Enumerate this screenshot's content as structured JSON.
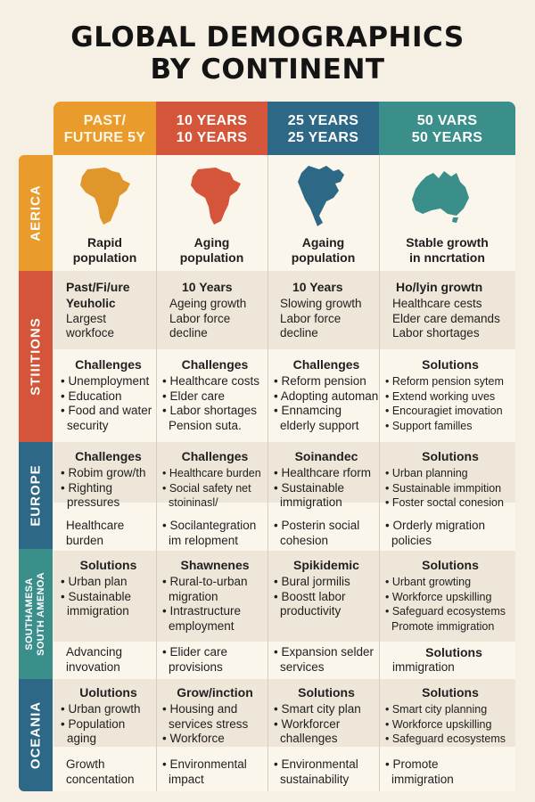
{
  "title": {
    "line1": "GLOBAL DEMOGRAPHICS",
    "line2": "BY CONTINENT"
  },
  "columns": [
    {
      "line1": "PAST/",
      "line2": "FUTURE 5Y"
    },
    {
      "line1": "10 YEARS",
      "line2": "10 YEARS"
    },
    {
      "line1": "25 YEARS",
      "line2": "25 YEARS"
    },
    {
      "line1": "50 VARS",
      "line2": "50 YEARS"
    }
  ],
  "rows": [
    "AERICA",
    "STIIITIONS",
    "EUROPE",
    "SOUTHAMESA SOUTH AMENOA",
    "OCEANIA"
  ],
  "rows_extra": {
    "sa_line1": "SOUTHAMESA",
    "sa_line2": "SOUTH AMENOA"
  },
  "maps": [
    {
      "name": "africa",
      "color": "#e0962a"
    },
    {
      "name": "africa",
      "color": "#d4553a"
    },
    {
      "name": "north-america",
      "color": "#2e6887"
    },
    {
      "name": "australia",
      "color": "#3a8f8b"
    }
  ],
  "captions": [
    {
      "line1": "Rapid",
      "line2": "population"
    },
    {
      "line1": "Aging",
      "line2": "population"
    },
    {
      "line1": "Againg",
      "line2": "population"
    },
    {
      "line1": "Stable growth",
      "line2": "in nncrtation"
    }
  ],
  "r2a": [
    {
      "head": "Past/Fi/ure",
      "sub": "Yeuholic",
      "lines": [
        "Largest",
        "workfoce"
      ]
    },
    {
      "head": "10 Years",
      "lines": [
        "Ageing growth",
        "Labor force",
        "decline"
      ]
    },
    {
      "head": "10 Years",
      "lines": [
        "Slowing growth",
        "Labor force",
        "decline"
      ]
    },
    {
      "head": "Ho/lyin growtn",
      "lines": [
        "Healthcare cests",
        "Elder care demands",
        "Labor shortages"
      ]
    }
  ],
  "r2b": [
    {
      "head": "Challenges",
      "lines": [
        "• Unemployment",
        "• Education",
        "• Food and water",
        "  security"
      ]
    },
    {
      "head": "Challenges",
      "lines": [
        "• Healthcare costs",
        "• Elder care",
        "• Labor shortages",
        "  Pension suta."
      ]
    },
    {
      "head": "Challenges",
      "lines": [
        "• Reform pension",
        "• Adopting automan",
        "• Ennamcing",
        "  elderly support"
      ]
    },
    {
      "head": "Solutions",
      "lines": [
        "• Reform pension sytem",
        "• Extend working uves",
        "• Encouragiet imovation",
        "• Support familles"
      ]
    }
  ],
  "r3a": [
    {
      "head": "Challenges",
      "lines": [
        "• Robim grow/th",
        "• Righting",
        "  pressures"
      ]
    },
    {
      "head": "Challenges",
      "lines": [
        "• Healthcare burden",
        "• Social safety net",
        "  stoininasl/"
      ]
    },
    {
      "head": "Soinandec",
      "lines": [
        "• Healthcare rform",
        "• Sustainable",
        "  immigration"
      ]
    },
    {
      "head": "Solutions",
      "lines": [
        "• Urban planning",
        "• Sustainable immpition",
        "• Foster soctal conesion"
      ]
    }
  ],
  "r3b": [
    {
      "lines": [
        "Healthcare",
        "burden"
      ]
    },
    {
      "lines": [
        "• Socilantegration",
        "  im relopment"
      ]
    },
    {
      "lines": [
        "• Posterin social",
        "  cohesion"
      ]
    },
    {
      "lines": [
        "• Orderly migration",
        "  policies"
      ]
    }
  ],
  "r4a": [
    {
      "head": "Solutions",
      "lines": [
        "• Urban plan",
        "• Sustainable",
        "  immigration"
      ]
    },
    {
      "head": "Shawnenes",
      "lines": [
        "• Rural-to-urban",
        "  migration",
        "• Intrastructure",
        "  employment"
      ]
    },
    {
      "head": "Spikidemic",
      "lines": [
        "• Bural jormilis",
        "• Boostt labor",
        "  productivity"
      ]
    },
    {
      "head": "Solutions",
      "lines": [
        "• Urbant growting",
        "• Workforce upskilling",
        "• Safeguard ecosystems",
        "  Promote immigration"
      ]
    }
  ],
  "r4b": [
    {
      "lines": [
        "Advancing",
        "invovation"
      ]
    },
    {
      "lines": [
        "• Elider care",
        "  provisions"
      ]
    },
    {
      "lines": [
        "• Expansion selder",
        "  services"
      ]
    },
    {
      "head": "Solutions",
      "lines": [
        "immigration"
      ]
    }
  ],
  "r5a": [
    {
      "head": "Uolutions",
      "lines": [
        "• Urban growth",
        "• Population",
        "  aging"
      ]
    },
    {
      "head": "Grow/inction",
      "lines": [
        "• Housing and",
        "  services stress",
        "• Workforce"
      ]
    },
    {
      "head": "Solutions",
      "lines": [
        "• Smart city plan",
        "• Workforcer",
        "  challenges"
      ]
    },
    {
      "head": "Solutions",
      "lines": [
        "• Smart city planning",
        "• Workforce upskilling",
        "• Safeguard ecosystems"
      ]
    }
  ],
  "r5b": [
    {
      "lines": [
        "Growth",
        "concentation"
      ]
    },
    {
      "lines": [
        "• Environmental",
        "  impact"
      ]
    },
    {
      "lines": [
        "• Environmental",
        "  sustainability"
      ]
    },
    {
      "lines": [
        "• Promote",
        "  immigration"
      ]
    }
  ]
}
